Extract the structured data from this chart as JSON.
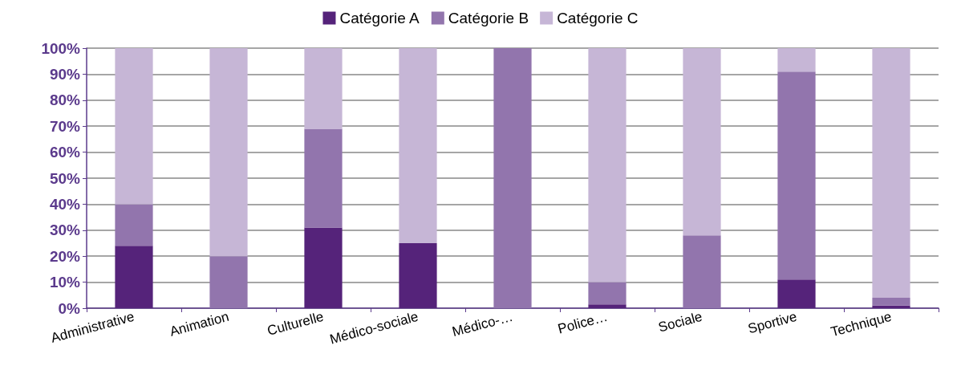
{
  "chart_data": {
    "type": "bar",
    "stacked": true,
    "categories": [
      "Administrative",
      "Animation",
      "Culturelle",
      "Médico-sociale",
      "Médico-…",
      "Police…",
      "Sociale",
      "Sportive",
      "Technique"
    ],
    "series": [
      {
        "name": "Catégorie A",
        "color": "#55237a",
        "values": [
          24,
          0,
          31,
          25,
          0,
          1.5,
          0,
          11,
          1
        ]
      },
      {
        "name": "Catégorie B",
        "color": "#9275ad",
        "values": [
          16,
          20,
          38,
          0,
          100,
          8.5,
          28,
          80,
          3
        ]
      },
      {
        "name": "Catégorie C",
        "color": "#c6b6d6",
        "values": [
          60,
          80,
          31,
          75,
          0,
          90,
          72,
          9,
          96
        ]
      }
    ],
    "ylim": [
      0,
      100
    ],
    "yticks": [
      {
        "value": 0,
        "label": "0%"
      },
      {
        "value": 10,
        "label": "10%"
      },
      {
        "value": 20,
        "label": "20%"
      },
      {
        "value": 30,
        "label": "30%"
      },
      {
        "value": 40,
        "label": "40%"
      },
      {
        "value": 50,
        "label": "50%"
      },
      {
        "value": 60,
        "label": "60%"
      },
      {
        "value": 70,
        "label": "70%"
      },
      {
        "value": 80,
        "label": "80%"
      },
      {
        "value": 90,
        "label": "90%"
      },
      {
        "value": 100,
        "label": "100%"
      }
    ],
    "grid": "y",
    "legend": "top"
  }
}
